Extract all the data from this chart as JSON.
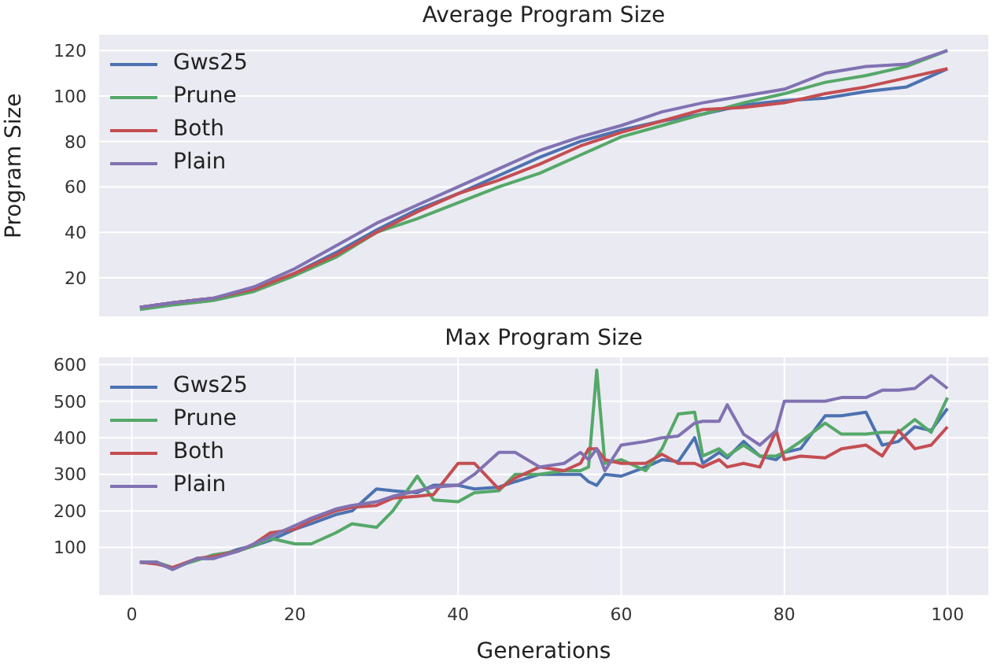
{
  "chart_data": [
    {
      "type": "line",
      "title": "Average Program Size",
      "ylabel": "Program Size",
      "x": [
        1,
        5,
        10,
        15,
        20,
        25,
        30,
        35,
        40,
        45,
        50,
        55,
        60,
        65,
        70,
        75,
        80,
        85,
        90,
        95,
        100
      ],
      "xlim": [
        -4,
        105
      ],
      "xticks": [
        0,
        20,
        40,
        60,
        80,
        100
      ],
      "ylim": [
        3,
        127
      ],
      "yticks": [
        20,
        40,
        60,
        80,
        100,
        120
      ],
      "tick_labels": "y",
      "grid": true,
      "legend": "top left",
      "line_style": "solid",
      "marker": "none",
      "series": [
        {
          "name": "Gws25",
          "color": "#4c72b0",
          "values": [
            7,
            9,
            11,
            15,
            22,
            31,
            41,
            50,
            57,
            65,
            73,
            80,
            85,
            89,
            92,
            96,
            98,
            99,
            102,
            104,
            112
          ]
        },
        {
          "name": "Prune",
          "color": "#55a868",
          "values": [
            6,
            8,
            10,
            14,
            21,
            29,
            40,
            46,
            53,
            60,
            66,
            74,
            82,
            87,
            92,
            97,
            101,
            106,
            109,
            113,
            120
          ]
        },
        {
          "name": "Both",
          "color": "#c44e52",
          "values": [
            7,
            9,
            11,
            15,
            22,
            30,
            40,
            49,
            57,
            63,
            70,
            78,
            84,
            89,
            94,
            95,
            97,
            101,
            104,
            108,
            112
          ]
        },
        {
          "name": "Plain",
          "color": "#8172b2",
          "values": [
            7,
            9,
            11,
            16,
            24,
            34,
            44,
            52,
            60,
            68,
            76,
            82,
            87,
            93,
            97,
            100,
            103,
            110,
            113,
            114,
            120
          ]
        }
      ]
    },
    {
      "type": "line",
      "title": "Max Program Size",
      "xlabel": "Generations",
      "x": [
        1,
        3,
        5,
        8,
        10,
        13,
        15,
        17,
        20,
        22,
        25,
        27,
        30,
        32,
        35,
        37,
        40,
        42,
        45,
        47,
        50,
        53,
        55,
        56,
        57,
        58,
        60,
        63,
        65,
        67,
        69,
        70,
        72,
        73,
        75,
        77,
        79,
        80,
        82,
        85,
        87,
        90,
        92,
        94,
        96,
        98,
        100
      ],
      "xlim": [
        -4,
        105
      ],
      "xticks": [
        0,
        20,
        40,
        60,
        80,
        100
      ],
      "ylim": [
        -30,
        620
      ],
      "yticks": [
        100,
        200,
        300,
        400,
        500,
        600
      ],
      "grid": true,
      "legend": "top left",
      "line_style": "solid",
      "marker": "none",
      "series": [
        {
          "name": "Gws25",
          "color": "#4c72b0",
          "values": [
            60,
            60,
            40,
            70,
            70,
            95,
            105,
            120,
            150,
            165,
            190,
            200,
            260,
            255,
            250,
            270,
            270,
            260,
            265,
            280,
            300,
            300,
            300,
            280,
            270,
            300,
            295,
            320,
            340,
            335,
            400,
            330,
            360,
            345,
            390,
            350,
            340,
            360,
            370,
            460,
            460,
            470,
            380,
            390,
            430,
            420,
            480
          ]
        },
        {
          "name": "Prune",
          "color": "#55a868",
          "values": [
            60,
            60,
            45,
            65,
            80,
            90,
            105,
            125,
            110,
            110,
            140,
            165,
            155,
            200,
            295,
            230,
            225,
            250,
            255,
            300,
            300,
            310,
            310,
            320,
            585,
            330,
            340,
            310,
            370,
            465,
            470,
            350,
            370,
            350,
            380,
            350,
            350,
            360,
            390,
            440,
            410,
            410,
            415,
            415,
            450,
            415,
            510
          ]
        },
        {
          "name": "Both",
          "color": "#c44e52",
          "values": [
            60,
            55,
            45,
            70,
            75,
            90,
            110,
            140,
            150,
            175,
            200,
            210,
            215,
            235,
            240,
            245,
            330,
            330,
            260,
            290,
            320,
            310,
            330,
            370,
            370,
            340,
            330,
            330,
            355,
            330,
            330,
            320,
            340,
            320,
            330,
            320,
            420,
            340,
            350,
            345,
            370,
            380,
            350,
            420,
            370,
            380,
            430
          ]
        },
        {
          "name": "Plain",
          "color": "#8172b2",
          "values": [
            60,
            60,
            40,
            70,
            70,
            90,
            110,
            130,
            160,
            180,
            205,
            215,
            225,
            240,
            255,
            265,
            270,
            300,
            360,
            360,
            320,
            330,
            360,
            340,
            370,
            310,
            380,
            390,
            400,
            405,
            440,
            445,
            445,
            490,
            410,
            380,
            420,
            500,
            500,
            500,
            510,
            510,
            530,
            530,
            535,
            570,
            535
          ]
        }
      ]
    }
  ]
}
